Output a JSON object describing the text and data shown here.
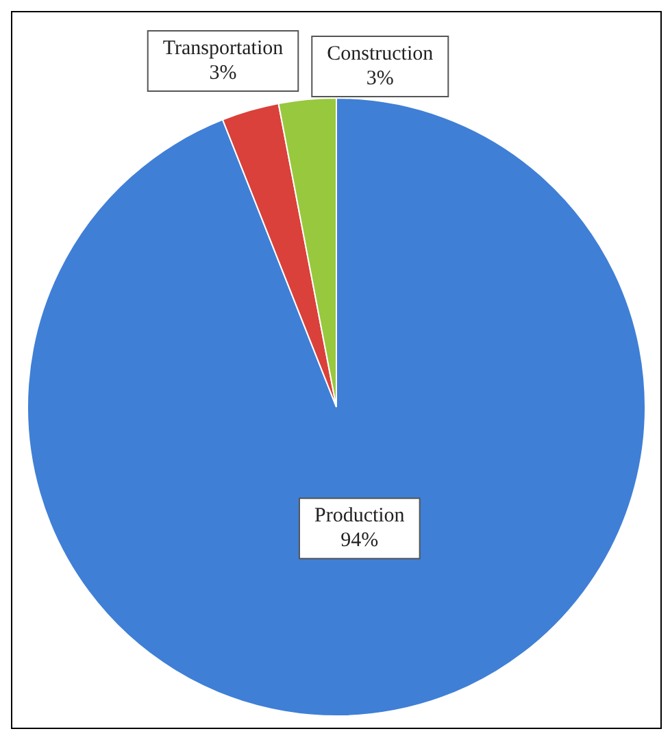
{
  "chart_data": {
    "type": "pie",
    "categories": [
      "Production",
      "Transportation",
      "Construction"
    ],
    "values": [
      94,
      3,
      3
    ],
    "colors": [
      "#3f7fd6",
      "#d9413a",
      "#98c83e"
    ],
    "value_labels": [
      "94%",
      "3%",
      "3%"
    ],
    "legend": false
  }
}
